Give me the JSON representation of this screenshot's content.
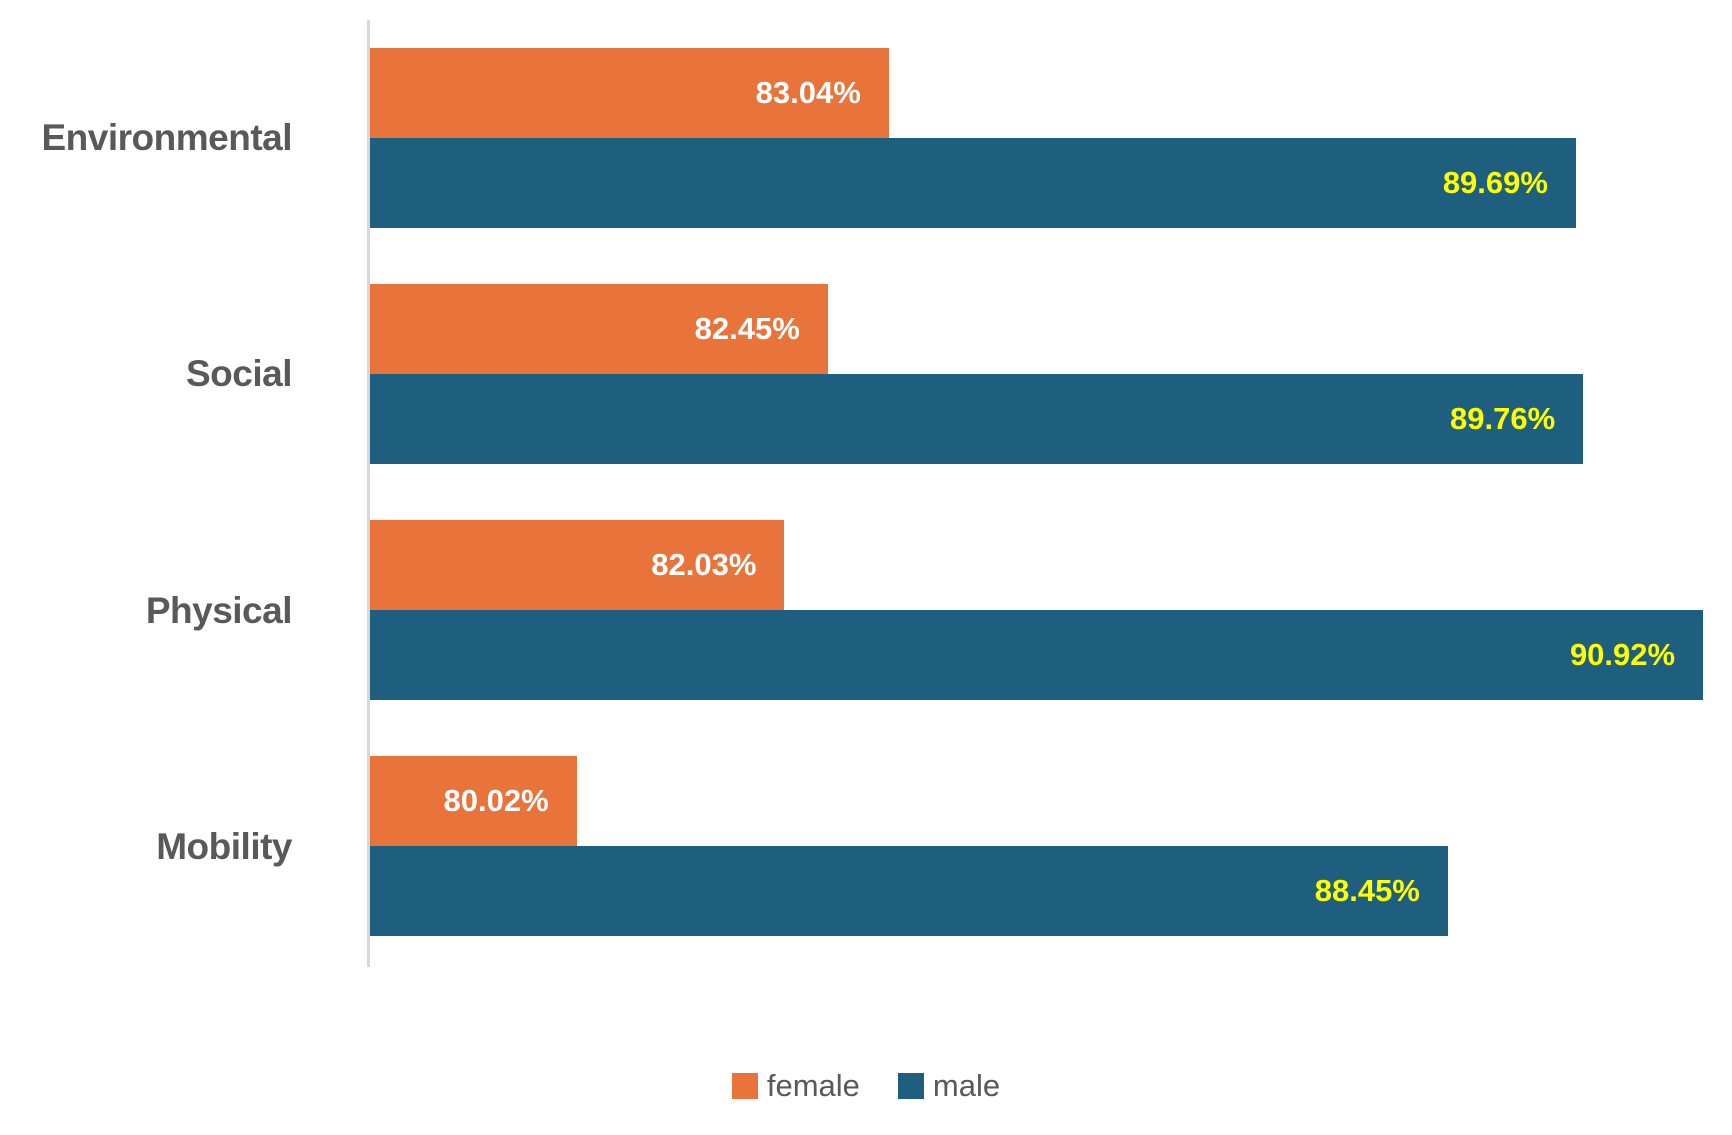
{
  "chart_data": {
    "type": "bar",
    "orientation": "horizontal",
    "title": "",
    "xlabel": "",
    "ylabel": "",
    "categories": [
      "Environmental",
      "Social",
      "Physical",
      "Mobility"
    ],
    "series": [
      {
        "name": "female",
        "color": "#E8743C",
        "label_color": "#FFFFFF",
        "values": [
          83.04,
          82.45,
          82.03,
          80.02
        ],
        "labels": [
          "83.04%",
          "82.45%",
          "82.03%",
          "80.02%"
        ]
      },
      {
        "name": "male",
        "color": "#1E5E7E",
        "label_color": "#FFFF00",
        "values": [
          89.69,
          89.76,
          90.92,
          88.45
        ],
        "labels": [
          "89.69%",
          "89.76%",
          "90.92%",
          "88.45%"
        ]
      }
    ],
    "xlim": [
      78,
      91.2
    ],
    "grid": false,
    "value_labels_inside_bar_end": true,
    "category_label_color": "#595959",
    "axis_line_color": "#D8D8D8",
    "legend_position": "bottom-center",
    "legend": [
      {
        "label": "female",
        "color": "#E8743C"
      },
      {
        "label": "male",
        "color": "#1E5E7E"
      }
    ]
  }
}
